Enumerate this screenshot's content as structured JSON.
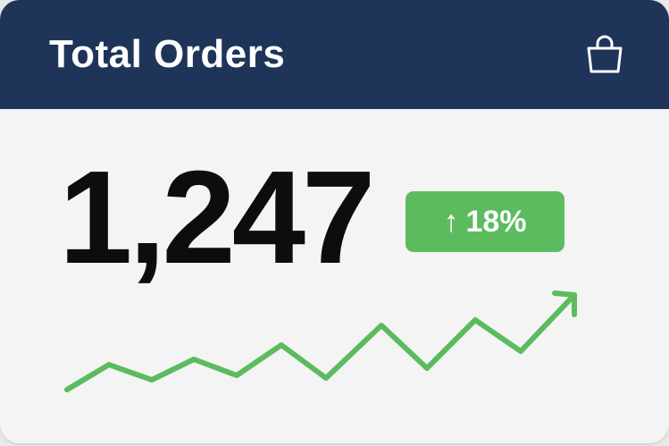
{
  "card": {
    "title": "Total Orders",
    "header_icon": "shopping-bag-icon",
    "value": "1,247",
    "change": {
      "icon": "arrow-up-icon",
      "arrow": "↑",
      "label": "18%"
    }
  },
  "colors": {
    "header": "#1f3459",
    "positive": "#5cbb5e",
    "background": "#f4f4f4"
  }
}
